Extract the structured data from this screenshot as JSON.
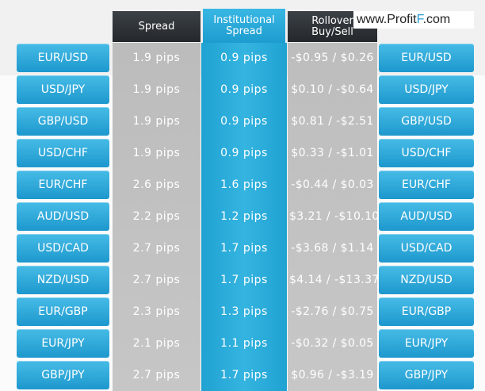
{
  "headers": {
    "spread": "Spread",
    "institutional_line1": "Institutional",
    "institutional_line2": "Spread",
    "rollover_line1": "Rollover",
    "rollover_line2": "Buy/Sell"
  },
  "watermark": {
    "prefix": "www.Profit",
    "accent": "F",
    "suffix": ".com"
  },
  "rows": [
    {
      "pair": "EUR/USD",
      "spread": "1.9 pips",
      "institutional": "0.9 pips",
      "rollover": "-$0.95 / $0.26"
    },
    {
      "pair": "USD/JPY",
      "spread": "1.9 pips",
      "institutional": "0.9 pips",
      "rollover": "$0.10 / -$0.64"
    },
    {
      "pair": "GBP/USD",
      "spread": "1.9 pips",
      "institutional": "0.9 pips",
      "rollover": "$0.81 / -$2.51"
    },
    {
      "pair": "USD/CHF",
      "spread": "1.9 pips",
      "institutional": "0.9 pips",
      "rollover": "$0.33 / -$1.01"
    },
    {
      "pair": "EUR/CHF",
      "spread": "2.6 pips",
      "institutional": "1.6 pips",
      "rollover": "-$0.44 / $0.03"
    },
    {
      "pair": "AUD/USD",
      "spread": "2.2 pips",
      "institutional": "1.2 pips",
      "rollover": "$3.21 / -$10.10"
    },
    {
      "pair": "USD/CAD",
      "spread": "2.7 pips",
      "institutional": "1.7 pips",
      "rollover": "-$3.68 / $1.14"
    },
    {
      "pair": "NZD/USD",
      "spread": "2.7 pips",
      "institutional": "1.7 pips",
      "rollover": "$4.14 / -$13.37"
    },
    {
      "pair": "EUR/GBP",
      "spread": "2.3 pips",
      "institutional": "1.3 pips",
      "rollover": "-$2.76 / $0.75"
    },
    {
      "pair": "EUR/JPY",
      "spread": "2.1 pips",
      "institutional": "1.1 pips",
      "rollover": "-$0.32 / $0.05"
    },
    {
      "pair": "GBP/JPY",
      "spread": "2.7 pips",
      "institutional": "1.7 pips",
      "rollover": "$0.96 / -$3.19"
    }
  ]
}
